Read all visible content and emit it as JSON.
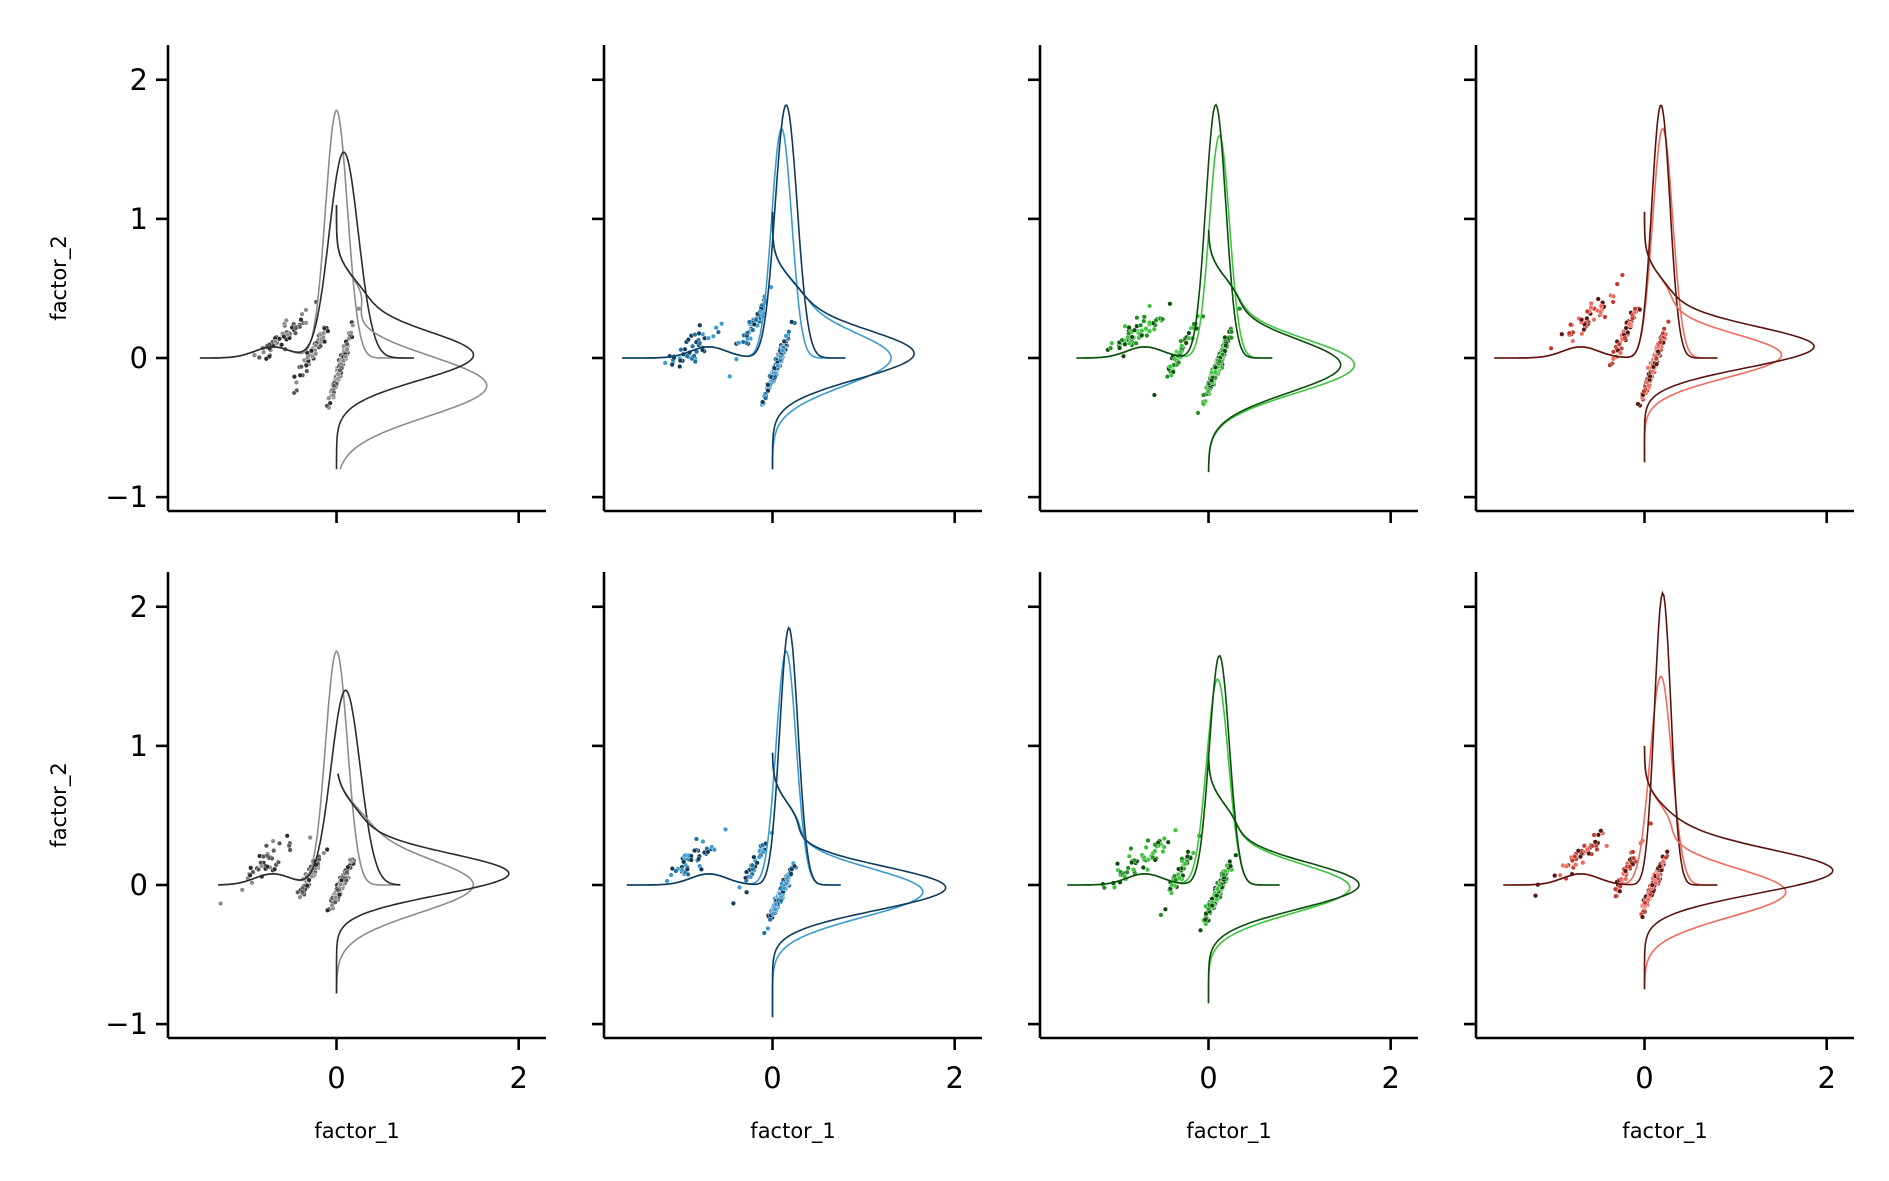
{
  "chart_data": {
    "type": "scatter",
    "layout": {
      "rows": 2,
      "cols": 4,
      "sharex": true,
      "sharey": true
    },
    "xlabel": "factor_1",
    "ylabel": "factor_2",
    "xlim": [
      -1.85,
      2.3
    ],
    "ylim": [
      -1.1,
      2.25
    ],
    "xticks": [
      0,
      2
    ],
    "yticks": [
      -1,
      0,
      1,
      2
    ],
    "xtick_labels": [
      "0",
      "2"
    ],
    "ytick_labels": [
      "−1",
      "0",
      "1",
      "2"
    ],
    "marginal": "kde",
    "grid": false,
    "legend": "none",
    "palettes": [
      {
        "light": "#8c8c8c",
        "mid": "#595959",
        "dark": "#2b2b2b"
      },
      {
        "light": "#3b9bd0",
        "mid": "#1f6f9f",
        "dark": "#0d3b5c"
      },
      {
        "light": "#3cc43c",
        "mid": "#1f8f1f",
        "dark": "#0b4d0b"
      },
      {
        "light": "#f26a5a",
        "mid": "#c43a2e",
        "dark": "#5a1410"
      }
    ],
    "panels": [
      {
        "row": 0,
        "col": 0,
        "clusters": [
          {
            "cx": -0.6,
            "cy": 0.15,
            "count": 55,
            "spread": 0.09,
            "slope": 0.6
          },
          {
            "cx": -0.25,
            "cy": 0.05,
            "count": 70,
            "spread": 0.06,
            "slope": 1.1
          },
          {
            "cx": 0.05,
            "cy": -0.05,
            "count": 170,
            "spread": 0.035,
            "slope": 2.1
          }
        ],
        "kde_x": [
          {
            "shade": "light",
            "peak": 1.78,
            "center": 0.0,
            "width": 0.12,
            "base_from": -1.5,
            "base_to": 0.85
          },
          {
            "shade": "dark",
            "peak": 1.48,
            "center": 0.08,
            "width": 0.16,
            "base_from": -1.5,
            "base_to": 0.85
          }
        ],
        "kde_y": [
          {
            "shade": "light",
            "peak": 1.65,
            "center": -0.2,
            "width": 0.22,
            "base_from": -0.8,
            "base_to": 1.1
          },
          {
            "shade": "dark",
            "peak": 1.5,
            "center": 0.02,
            "width": 0.18,
            "base_from": -0.8,
            "base_to": 1.1
          }
        ]
      },
      {
        "row": 0,
        "col": 1,
        "clusters": [
          {
            "cx": -0.85,
            "cy": 0.08,
            "count": 45,
            "spread": 0.1,
            "slope": 0.4
          },
          {
            "cx": -0.2,
            "cy": 0.25,
            "count": 45,
            "spread": 0.05,
            "slope": 1.2
          },
          {
            "cx": 0.05,
            "cy": -0.05,
            "count": 230,
            "spread": 0.035,
            "slope": 1.75
          }
        ],
        "kde_x": [
          {
            "shade": "light",
            "peak": 1.65,
            "center": 0.1,
            "width": 0.11,
            "base_from": -1.65,
            "base_to": 0.8
          },
          {
            "shade": "dark",
            "peak": 1.82,
            "center": 0.15,
            "width": 0.12,
            "base_from": -1.65,
            "base_to": 0.8
          }
        ],
        "kde_y": [
          {
            "shade": "light",
            "peak": 1.3,
            "center": 0.0,
            "width": 0.2,
            "base_from": -0.8,
            "base_to": 1.05
          },
          {
            "shade": "dark",
            "peak": 1.55,
            "center": 0.03,
            "width": 0.18,
            "base_from": -0.8,
            "base_to": 1.05
          }
        ]
      },
      {
        "row": 0,
        "col": 2,
        "clusters": [
          {
            "cx": -0.75,
            "cy": 0.2,
            "count": 60,
            "spread": 0.1,
            "slope": 0.5
          },
          {
            "cx": -0.3,
            "cy": 0.05,
            "count": 60,
            "spread": 0.05,
            "slope": 1.2
          },
          {
            "cx": 0.1,
            "cy": -0.05,
            "count": 240,
            "spread": 0.04,
            "slope": 1.7
          }
        ],
        "kde_x": [
          {
            "shade": "light",
            "peak": 1.6,
            "center": 0.12,
            "width": 0.11,
            "base_from": -1.45,
            "base_to": 0.7
          },
          {
            "shade": "dark",
            "peak": 1.82,
            "center": 0.08,
            "width": 0.11,
            "base_from": -1.45,
            "base_to": 0.7
          }
        ],
        "kde_y": [
          {
            "shade": "light",
            "peak": 1.6,
            "center": -0.05,
            "width": 0.2,
            "base_from": -0.82,
            "base_to": 0.92
          },
          {
            "shade": "dark",
            "peak": 1.45,
            "center": -0.05,
            "width": 0.2,
            "base_from": -0.82,
            "base_to": 0.92
          }
        ]
      },
      {
        "row": 0,
        "col": 3,
        "clusters": [
          {
            "cx": -0.6,
            "cy": 0.3,
            "count": 50,
            "spread": 0.09,
            "slope": 0.6
          },
          {
            "cx": -0.2,
            "cy": 0.2,
            "count": 55,
            "spread": 0.05,
            "slope": 1.3
          },
          {
            "cx": 0.1,
            "cy": -0.05,
            "count": 200,
            "spread": 0.035,
            "slope": 1.9
          }
        ],
        "kde_x": [
          {
            "shade": "light",
            "peak": 1.65,
            "center": 0.2,
            "width": 0.11,
            "base_from": -1.65,
            "base_to": 0.8
          },
          {
            "shade": "dark",
            "peak": 1.82,
            "center": 0.18,
            "width": 0.1,
            "base_from": -1.65,
            "base_to": 0.8
          }
        ],
        "kde_y": [
          {
            "shade": "light",
            "peak": 1.5,
            "center": 0.02,
            "width": 0.16,
            "base_from": -0.75,
            "base_to": 1.05
          },
          {
            "shade": "dark",
            "peak": 1.85,
            "center": 0.08,
            "width": 0.15,
            "base_from": -0.75,
            "base_to": 1.05
          }
        ]
      },
      {
        "row": 1,
        "col": 0,
        "clusters": [
          {
            "cx": -0.8,
            "cy": 0.15,
            "count": 40,
            "spread": 0.1,
            "slope": 0.5
          },
          {
            "cx": -0.3,
            "cy": 0.05,
            "count": 60,
            "spread": 0.05,
            "slope": 1.2
          },
          {
            "cx": 0.05,
            "cy": 0.0,
            "count": 150,
            "spread": 0.035,
            "slope": 1.4
          }
        ],
        "kde_x": [
          {
            "shade": "light",
            "peak": 1.68,
            "center": 0.0,
            "width": 0.12,
            "base_from": -1.3,
            "base_to": 0.7
          },
          {
            "shade": "dark",
            "peak": 1.4,
            "center": 0.1,
            "width": 0.16,
            "base_from": -1.3,
            "base_to": 0.7
          }
        ],
        "kde_y": [
          {
            "shade": "light",
            "peak": 1.5,
            "center": 0.0,
            "width": 0.2,
            "base_from": -0.78,
            "base_to": 0.8
          },
          {
            "shade": "dark",
            "peak": 1.88,
            "center": 0.08,
            "width": 0.15,
            "base_from": -0.78,
            "base_to": 0.8
          }
        ]
      },
      {
        "row": 1,
        "col": 1,
        "clusters": [
          {
            "cx": -0.85,
            "cy": 0.2,
            "count": 45,
            "spread": 0.1,
            "slope": 0.5
          },
          {
            "cx": -0.2,
            "cy": 0.15,
            "count": 40,
            "spread": 0.05,
            "slope": 1.2
          },
          {
            "cx": 0.1,
            "cy": -0.05,
            "count": 220,
            "spread": 0.035,
            "slope": 1.5
          }
        ],
        "kde_x": [
          {
            "shade": "light",
            "peak": 1.68,
            "center": 0.15,
            "width": 0.11,
            "base_from": -1.6,
            "base_to": 0.75
          },
          {
            "shade": "dark",
            "peak": 1.85,
            "center": 0.18,
            "width": 0.1,
            "base_from": -1.6,
            "base_to": 0.75
          }
        ],
        "kde_y": [
          {
            "shade": "light",
            "peak": 1.65,
            "center": -0.05,
            "width": 0.18,
            "base_from": -0.95,
            "base_to": 0.95
          },
          {
            "shade": "dark",
            "peak": 1.9,
            "center": -0.02,
            "width": 0.16,
            "base_from": -0.95,
            "base_to": 0.95
          }
        ]
      },
      {
        "row": 1,
        "col": 2,
        "clusters": [
          {
            "cx": -0.8,
            "cy": 0.15,
            "count": 55,
            "spread": 0.1,
            "slope": 0.5
          },
          {
            "cx": -0.3,
            "cy": 0.1,
            "count": 55,
            "spread": 0.05,
            "slope": 1.2
          },
          {
            "cx": 0.1,
            "cy": -0.05,
            "count": 240,
            "spread": 0.04,
            "slope": 1.4
          }
        ],
        "kde_x": [
          {
            "shade": "light",
            "peak": 1.48,
            "center": 0.1,
            "width": 0.12,
            "base_from": -1.55,
            "base_to": 0.78
          },
          {
            "shade": "dark",
            "peak": 1.65,
            "center": 0.12,
            "width": 0.11,
            "base_from": -1.55,
            "base_to": 0.78
          }
        ],
        "kde_y": [
          {
            "shade": "light",
            "peak": 1.55,
            "center": -0.02,
            "width": 0.18,
            "base_from": -0.85,
            "base_to": 0.95
          },
          {
            "shade": "dark",
            "peak": 1.65,
            "center": 0.0,
            "width": 0.17,
            "base_from": -0.85,
            "base_to": 0.95
          }
        ]
      },
      {
        "row": 1,
        "col": 3,
        "clusters": [
          {
            "cx": -0.7,
            "cy": 0.2,
            "count": 45,
            "spread": 0.1,
            "slope": 0.5
          },
          {
            "cx": -0.2,
            "cy": 0.1,
            "count": 40,
            "spread": 0.05,
            "slope": 1.2
          },
          {
            "cx": 0.1,
            "cy": 0.0,
            "count": 200,
            "spread": 0.035,
            "slope": 1.5
          }
        ],
        "kde_x": [
          {
            "shade": "light",
            "peak": 1.5,
            "center": 0.18,
            "width": 0.12,
            "base_from": -1.55,
            "base_to": 0.8
          },
          {
            "shade": "dark",
            "peak": 2.1,
            "center": 0.2,
            "width": 0.09,
            "base_from": -1.55,
            "base_to": 0.8
          }
        ],
        "kde_y": [
          {
            "shade": "light",
            "peak": 1.55,
            "center": -0.05,
            "width": 0.18,
            "base_from": -0.75,
            "base_to": 1.0
          },
          {
            "shade": "dark",
            "peak": 2.05,
            "center": 0.1,
            "width": 0.16,
            "base_from": -0.75,
            "base_to": 1.0
          }
        ]
      }
    ]
  }
}
